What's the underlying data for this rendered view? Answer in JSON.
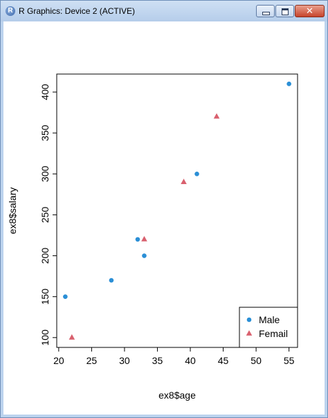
{
  "window": {
    "title": "R Graphics: Device 2 (ACTIVE)",
    "app_icon_letter": "R",
    "close_glyph": "✕"
  },
  "chart_data": {
    "type": "scatter",
    "title": "",
    "xlabel": "ex8$age",
    "ylabel": "ex8$salary",
    "xlim": [
      19.7,
      56.3
    ],
    "ylim": [
      88,
      422
    ],
    "x_ticks": [
      20,
      25,
      30,
      35,
      40,
      45,
      50,
      55
    ],
    "y_ticks": [
      100,
      150,
      200,
      250,
      300,
      350,
      400
    ],
    "grid": false,
    "legend_position": "bottom-right",
    "series": [
      {
        "name": "Male",
        "marker": "circle",
        "color": "#2b8fd6",
        "x": [
          21,
          28,
          32,
          33,
          41,
          55
        ],
        "y": [
          150,
          170,
          220,
          200,
          300,
          410
        ]
      },
      {
        "name": "Femail",
        "marker": "triangle",
        "color": "#d9606e",
        "x": [
          22,
          33,
          39,
          44
        ],
        "y": [
          100,
          220,
          290,
          370
        ]
      }
    ]
  }
}
